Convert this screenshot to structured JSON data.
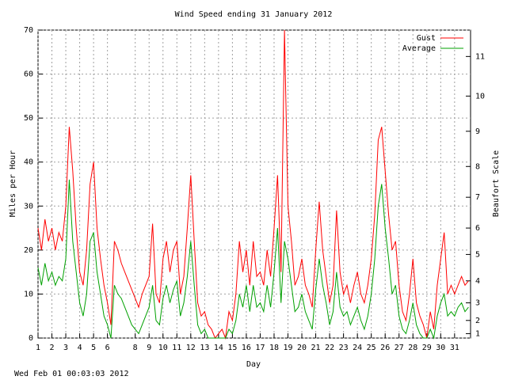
{
  "chart_data": {
    "type": "line",
    "title": "Wind Speed ending 31 January 2012",
    "xlabel": "Day",
    "ylabel": "Miles per Hour",
    "y2label": "Beaufort Scale",
    "footer": "Wed Feb 01 00:03:03 2012",
    "x": [
      1,
      1.25,
      1.5,
      1.75,
      2,
      2.25,
      2.5,
      2.75,
      3,
      3.25,
      3.5,
      3.75,
      4,
      4.25,
      4.5,
      4.75,
      5,
      5.25,
      5.5,
      5.75,
      6,
      6.25,
      6.5,
      6.75,
      7,
      7.25,
      7.5,
      7.75,
      8,
      8.25,
      8.5,
      8.75,
      9,
      9.25,
      9.5,
      9.75,
      10,
      10.25,
      10.5,
      10.75,
      11,
      11.25,
      11.5,
      11.75,
      12,
      12.25,
      12.5,
      12.75,
      13,
      13.25,
      13.5,
      13.75,
      14,
      14.25,
      14.5,
      14.75,
      15,
      15.25,
      15.5,
      15.75,
      16,
      16.25,
      16.5,
      16.75,
      17,
      17.25,
      17.5,
      17.75,
      18,
      18.25,
      18.5,
      18.75,
      19,
      19.25,
      19.5,
      19.75,
      20,
      20.25,
      20.5,
      20.75,
      21,
      21.25,
      21.5,
      21.75,
      22,
      22.25,
      22.5,
      22.75,
      23,
      23.25,
      23.5,
      23.75,
      24,
      24.25,
      24.5,
      24.75,
      25,
      25.25,
      25.5,
      25.75,
      26,
      26.25,
      26.5,
      26.75,
      27,
      27.25,
      27.5,
      27.75,
      28,
      28.25,
      28.5,
      28.75,
      29,
      29.25,
      29.5,
      29.75,
      30,
      30.25,
      30.5,
      30.75,
      31,
      31.25,
      31.5,
      31.75,
      32
    ],
    "series": [
      {
        "name": "Gust",
        "color": "#ff0000",
        "values": [
          25,
          20,
          27,
          22,
          25,
          20,
          24,
          22,
          30,
          48,
          38,
          25,
          15,
          12,
          20,
          35,
          40,
          25,
          18,
          12,
          8,
          3,
          22,
          20,
          17,
          15,
          13,
          11,
          9,
          7,
          10,
          12,
          14,
          26,
          10,
          8,
          18,
          22,
          15,
          20,
          22,
          10,
          14,
          25,
          37,
          22,
          8,
          5,
          6,
          3,
          2,
          0,
          1,
          2,
          0,
          6,
          4,
          10,
          22,
          15,
          20,
          12,
          22,
          14,
          15,
          12,
          20,
          14,
          25,
          37,
          15,
          70,
          30,
          22,
          12,
          14,
          18,
          12,
          10,
          7,
          20,
          31,
          20,
          14,
          8,
          12,
          29,
          15,
          10,
          12,
          8,
          12,
          15,
          10,
          8,
          12,
          18,
          28,
          45,
          48,
          38,
          28,
          20,
          22,
          12,
          6,
          4,
          10,
          18,
          8,
          5,
          3,
          0,
          6,
          2,
          12,
          18,
          24,
          10,
          12,
          10,
          12,
          14,
          12,
          13
        ]
      },
      {
        "name": "Average",
        "color": "#00a000",
        "values": [
          16,
          12,
          17,
          13,
          15,
          12,
          14,
          13,
          18,
          36,
          22,
          15,
          8,
          5,
          10,
          22,
          24,
          15,
          10,
          5,
          3,
          0,
          12,
          10,
          9,
          7,
          5,
          3,
          2,
          1,
          3,
          5,
          7,
          12,
          4,
          3,
          9,
          12,
          8,
          11,
          13,
          5,
          8,
          14,
          22,
          12,
          3,
          1,
          2,
          0,
          0,
          0,
          0,
          0,
          0,
          2,
          1,
          4,
          10,
          7,
          12,
          6,
          12,
          7,
          8,
          6,
          12,
          7,
          15,
          25,
          8,
          22,
          18,
          12,
          6,
          7,
          10,
          6,
          4,
          2,
          11,
          18,
          12,
          8,
          3,
          6,
          15,
          7,
          5,
          6,
          3,
          5,
          7,
          4,
          2,
          5,
          10,
          18,
          30,
          35,
          25,
          18,
          10,
          12,
          5,
          2,
          1,
          4,
          8,
          3,
          1,
          0,
          0,
          2,
          0,
          5,
          8,
          10,
          5,
          6,
          5,
          7,
          8,
          6,
          7
        ]
      }
    ],
    "xlim": [
      1,
      32.15
    ],
    "xticks": [
      1,
      2,
      3,
      4,
      5,
      6,
      8,
      9,
      10,
      11,
      12,
      13,
      14,
      15,
      16,
      17,
      18,
      19,
      20,
      21,
      22,
      23,
      24,
      25,
      26,
      27,
      28,
      29,
      30,
      31
    ],
    "ylim": [
      0,
      70
    ],
    "yticks": [
      0,
      10,
      20,
      30,
      40,
      50,
      60,
      70
    ],
    "y2lim": [
      0,
      70
    ],
    "y2ticks": [
      1,
      {
        "value": 4,
        "label": "2"
      },
      {
        "value": 8,
        "label": "3"
      },
      {
        "value": 13,
        "label": "4"
      },
      {
        "value": 19,
        "label": "5"
      },
      {
        "value": 25,
        "label": "6"
      },
      {
        "value": 32,
        "label": "7"
      },
      {
        "value": 39,
        "label": "8"
      },
      {
        "value": 47,
        "label": "9"
      },
      {
        "value": 55,
        "label": "10"
      },
      {
        "value": 64,
        "label": "11"
      }
    ],
    "grid": true,
    "legend": "top-right"
  }
}
